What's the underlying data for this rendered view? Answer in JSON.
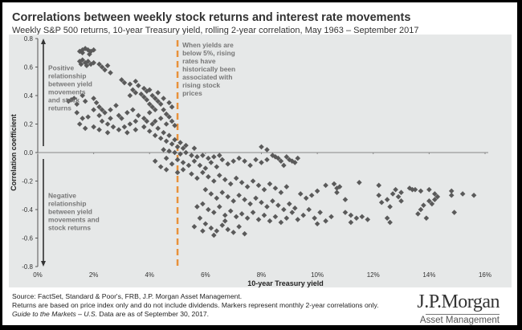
{
  "header": {
    "title": "Correlations between weekly stock returns and interest rate movements",
    "subtitle": "Weekly S&P 500 returns, 10-year Treasury yield, rolling 2-year correlation, May 1963 – September 2017"
  },
  "footer": {
    "line1": "Source: FactSet, Standard & Poor's, FRB, J.P. Morgan Asset Management.",
    "line2": "Returns are based on price index only and do not include dividends. Markers represent monthly 2-year correlations only.",
    "line3_italic": "Guide to the Markets – U.S.",
    "line3_rest": " Data are as of September 30, 2017."
  },
  "logo": {
    "brand": "J.P.Morgan",
    "division": "Asset Management"
  },
  "colors": {
    "marker": "#5a5a5a",
    "threshold_line": "#e8913a",
    "panel": "#e6e8e8",
    "annotation": "#777777"
  },
  "chart_data": {
    "type": "scatter",
    "title": "Correlations between weekly stock returns and interest rate movements",
    "xlabel": "10-year Treasury yield",
    "ylabel": "Correlation coefficient",
    "xlim": [
      0,
      16
    ],
    "ylim": [
      -0.8,
      0.8
    ],
    "x_ticks": [
      "0%",
      "2%",
      "4%",
      "6%",
      "8%",
      "10%",
      "12%",
      "14%",
      "16%"
    ],
    "y_ticks": [
      "0.8",
      "0.6",
      "0.4",
      "0.2",
      "0.0",
      "-0.2",
      "-0.4",
      "-0.6",
      "-0.8"
    ],
    "grid": false,
    "reference_lines": [
      {
        "axis": "x",
        "value": 5,
        "style": "dashed"
      }
    ],
    "annotations": {
      "threshold": [
        "When yields are",
        "below 5%, rising",
        "rates have",
        "historically been",
        "associated with",
        "rising stock",
        "prices"
      ],
      "positive": [
        "Positive",
        "relationship",
        "between yield",
        "movements",
        "and stock",
        "returns"
      ],
      "negative": [
        "Negative",
        "relationship",
        "between yield",
        "movements and",
        "stock returns"
      ]
    },
    "points": [
      [
        1.5,
        0.71
      ],
      [
        1.6,
        0.72
      ],
      [
        1.7,
        0.73
      ],
      [
        1.8,
        0.72
      ],
      [
        1.9,
        0.71
      ],
      [
        2.0,
        0.72
      ],
      [
        1.6,
        0.7
      ],
      [
        1.85,
        0.69
      ],
      [
        1.5,
        0.64
      ],
      [
        1.55,
        0.62
      ],
      [
        1.6,
        0.65
      ],
      [
        1.7,
        0.63
      ],
      [
        1.75,
        0.61
      ],
      [
        1.8,
        0.64
      ],
      [
        1.9,
        0.62
      ],
      [
        2.0,
        0.63
      ],
      [
        2.2,
        0.62
      ],
      [
        2.3,
        0.6
      ],
      [
        2.4,
        0.58
      ],
      [
        2.5,
        0.61
      ],
      [
        2.6,
        0.56
      ],
      [
        3.0,
        0.51
      ],
      [
        3.1,
        0.49
      ],
      [
        3.3,
        0.48
      ],
      [
        3.5,
        0.5
      ],
      [
        3.6,
        0.47
      ],
      [
        3.8,
        0.45
      ],
      [
        3.9,
        0.43
      ],
      [
        4.0,
        0.44
      ],
      [
        4.1,
        0.4
      ],
      [
        4.2,
        0.38
      ],
      [
        4.3,
        0.36
      ],
      [
        4.4,
        0.34
      ],
      [
        4.5,
        0.3
      ],
      [
        4.6,
        0.27
      ],
      [
        4.7,
        0.25
      ],
      [
        4.8,
        0.22
      ],
      [
        4.9,
        0.19
      ],
      [
        3.7,
        0.41
      ],
      [
        3.8,
        0.39
      ],
      [
        3.9,
        0.37
      ],
      [
        4.0,
        0.34
      ],
      [
        4.1,
        0.32
      ],
      [
        4.2,
        0.3
      ],
      [
        3.4,
        0.44
      ],
      [
        3.5,
        0.42
      ],
      [
        3.3,
        0.4
      ],
      [
        4.3,
        0.42
      ],
      [
        4.5,
        0.38
      ],
      [
        4.7,
        0.35
      ],
      [
        4.8,
        0.32
      ],
      [
        4.6,
        0.2
      ],
      [
        4.4,
        0.24
      ],
      [
        4.2,
        0.22
      ],
      [
        4.0,
        0.28
      ],
      [
        1.1,
        0.36
      ],
      [
        1.2,
        0.37
      ],
      [
        1.3,
        0.38
      ],
      [
        1.4,
        0.34
      ],
      [
        1.6,
        0.4
      ],
      [
        1.7,
        0.36
      ],
      [
        2.0,
        0.38
      ],
      [
        2.1,
        0.35
      ],
      [
        2.2,
        0.32
      ],
      [
        2.3,
        0.3
      ],
      [
        2.0,
        0.3
      ],
      [
        2.2,
        0.26
      ],
      [
        2.4,
        0.28
      ],
      [
        2.6,
        0.3
      ],
      [
        2.8,
        0.33
      ],
      [
        2.9,
        0.26
      ],
      [
        3.0,
        0.24
      ],
      [
        3.2,
        0.28
      ],
      [
        3.4,
        0.3
      ],
      [
        3.6,
        0.26
      ],
      [
        3.5,
        0.22
      ],
      [
        3.3,
        0.2
      ],
      [
        3.1,
        0.18
      ],
      [
        1.4,
        0.28
      ],
      [
        1.6,
        0.24
      ],
      [
        1.8,
        0.25
      ],
      [
        1.5,
        0.2
      ],
      [
        1.7,
        0.17
      ],
      [
        2.0,
        0.18
      ],
      [
        2.2,
        0.16
      ],
      [
        2.5,
        0.14
      ],
      [
        2.7,
        0.18
      ],
      [
        2.9,
        0.16
      ],
      [
        3.2,
        0.14
      ],
      [
        3.5,
        0.16
      ],
      [
        3.8,
        0.18
      ],
      [
        4.0,
        0.15
      ],
      [
        4.2,
        0.12
      ],
      [
        4.4,
        0.1
      ],
      [
        4.6,
        0.08
      ],
      [
        4.8,
        0.06
      ],
      [
        5.0,
        0.04
      ],
      [
        5.2,
        0.03
      ],
      [
        2.3,
        0.22
      ],
      [
        2.5,
        0.2
      ],
      [
        2.6,
        0.24
      ],
      [
        3.8,
        0.24
      ],
      [
        3.9,
        0.22
      ],
      [
        4.1,
        0.2
      ],
      [
        4.3,
        0.17
      ],
      [
        4.5,
        0.14
      ],
      [
        4.7,
        0.12
      ],
      [
        4.9,
        0.09
      ],
      [
        5.1,
        0.07
      ],
      [
        5.3,
        0.05
      ],
      [
        4.5,
        0.02
      ],
      [
        4.7,
        0.01
      ],
      [
        4.9,
        0.0
      ],
      [
        5.1,
        -0.01
      ],
      [
        5.3,
        0.0
      ],
      [
        5.5,
        -0.02
      ],
      [
        5.7,
        -0.03
      ],
      [
        5.9,
        -0.02
      ],
      [
        6.1,
        -0.04
      ],
      [
        6.3,
        -0.03
      ],
      [
        6.5,
        -0.02
      ],
      [
        5.0,
        -0.05
      ],
      [
        5.2,
        -0.07
      ],
      [
        5.4,
        -0.09
      ],
      [
        4.8,
        -0.08
      ],
      [
        4.6,
        -0.04
      ],
      [
        5.6,
        0.03
      ],
      [
        4.2,
        -0.06
      ],
      [
        4.4,
        -0.1
      ],
      [
        4.6,
        -0.12
      ],
      [
        5.0,
        -0.14
      ],
      [
        5.2,
        -0.12
      ],
      [
        5.6,
        -0.06
      ],
      [
        5.8,
        -0.09
      ],
      [
        6.0,
        -0.11
      ],
      [
        6.2,
        -0.07
      ],
      [
        6.4,
        -0.1
      ],
      [
        6.6,
        -0.05
      ],
      [
        6.8,
        -0.08
      ],
      [
        7.0,
        -0.06
      ],
      [
        7.2,
        -0.04
      ],
      [
        7.4,
        -0.06
      ],
      [
        7.6,
        -0.09
      ],
      [
        7.8,
        -0.05
      ],
      [
        8.0,
        -0.07
      ],
      [
        8.2,
        -0.05
      ],
      [
        8.5,
        -0.03
      ],
      [
        8.7,
        -0.06
      ],
      [
        9.0,
        -0.05
      ],
      [
        9.2,
        -0.07
      ],
      [
        9.3,
        -0.04
      ],
      [
        8.8,
        -0.09
      ],
      [
        8.0,
        0.04
      ],
      [
        8.2,
        0.02
      ],
      [
        8.4,
        -0.02
      ],
      [
        8.6,
        -0.04
      ],
      [
        8.9,
        -0.03
      ],
      [
        9.1,
        -0.06
      ],
      [
        5.5,
        -0.15
      ],
      [
        5.7,
        -0.18
      ],
      [
        5.9,
        -0.14
      ],
      [
        6.1,
        -0.17
      ],
      [
        6.3,
        -0.2
      ],
      [
        6.5,
        -0.16
      ],
      [
        6.7,
        -0.19
      ],
      [
        6.9,
        -0.22
      ],
      [
        7.1,
        -0.18
      ],
      [
        7.3,
        -0.21
      ],
      [
        7.5,
        -0.24
      ],
      [
        7.7,
        -0.2
      ],
      [
        7.9,
        -0.23
      ],
      [
        8.1,
        -0.26
      ],
      [
        8.3,
        -0.22
      ],
      [
        8.5,
        -0.25
      ],
      [
        8.7,
        -0.28
      ],
      [
        8.9,
        -0.24
      ],
      [
        6.0,
        -0.26
      ],
      [
        6.2,
        -0.29
      ],
      [
        6.4,
        -0.32
      ],
      [
        6.6,
        -0.28
      ],
      [
        6.8,
        -0.31
      ],
      [
        7.0,
        -0.34
      ],
      [
        7.2,
        -0.3
      ],
      [
        7.4,
        -0.33
      ],
      [
        7.6,
        -0.36
      ],
      [
        7.8,
        -0.32
      ],
      [
        8.0,
        -0.35
      ],
      [
        8.2,
        -0.38
      ],
      [
        8.4,
        -0.34
      ],
      [
        8.6,
        -0.37
      ],
      [
        8.8,
        -0.4
      ],
      [
        9.0,
        -0.36
      ],
      [
        9.2,
        -0.39
      ],
      [
        5.7,
        -0.38
      ],
      [
        5.9,
        -0.36
      ],
      [
        6.1,
        -0.4
      ],
      [
        6.3,
        -0.42
      ],
      [
        6.5,
        -0.38
      ],
      [
        6.7,
        -0.44
      ],
      [
        6.9,
        -0.41
      ],
      [
        7.1,
        -0.45
      ],
      [
        7.3,
        -0.43
      ],
      [
        7.5,
        -0.46
      ],
      [
        7.7,
        -0.42
      ],
      [
        7.9,
        -0.47
      ],
      [
        8.1,
        -0.44
      ],
      [
        8.3,
        -0.48
      ],
      [
        8.5,
        -0.45
      ],
      [
        8.7,
        -0.49
      ],
      [
        8.9,
        -0.46
      ],
      [
        9.1,
        -0.42
      ],
      [
        9.3,
        -0.47
      ],
      [
        9.5,
        -0.44
      ],
      [
        6.0,
        -0.5
      ],
      [
        6.2,
        -0.53
      ],
      [
        6.4,
        -0.55
      ],
      [
        6.6,
        -0.51
      ],
      [
        6.8,
        -0.54
      ],
      [
        7.0,
        -0.56
      ],
      [
        7.2,
        -0.52
      ],
      [
        7.4,
        -0.57
      ],
      [
        6.3,
        -0.58
      ],
      [
        6.7,
        -0.48
      ],
      [
        5.8,
        -0.46
      ],
      [
        5.6,
        -0.52
      ],
      [
        5.9,
        -0.55
      ],
      [
        9.4,
        -0.29
      ],
      [
        9.6,
        -0.32
      ],
      [
        9.8,
        -0.3
      ],
      [
        10.0,
        -0.27
      ],
      [
        9.7,
        -0.4
      ],
      [
        9.9,
        -0.46
      ],
      [
        10.1,
        -0.42
      ],
      [
        10.3,
        -0.48
      ],
      [
        10.5,
        -0.45
      ],
      [
        10.0,
        -0.5
      ],
      [
        10.3,
        -0.23
      ],
      [
        10.6,
        -0.22
      ],
      [
        10.7,
        -0.25
      ],
      [
        10.8,
        -0.24
      ],
      [
        10.7,
        -0.28
      ],
      [
        11.0,
        -0.33
      ],
      [
        11.5,
        -0.21
      ],
      [
        11.0,
        -0.42
      ],
      [
        11.2,
        -0.44
      ],
      [
        11.4,
        -0.46
      ],
      [
        11.6,
        -0.45
      ],
      [
        11.8,
        -0.47
      ],
      [
        11.2,
        -0.49
      ],
      [
        12.2,
        -0.23
      ],
      [
        12.2,
        -0.3
      ],
      [
        12.5,
        -0.33
      ],
      [
        12.7,
        -0.29
      ],
      [
        12.8,
        -0.26
      ],
      [
        12.9,
        -0.31
      ],
      [
        12.3,
        -0.35
      ],
      [
        12.6,
        -0.38
      ],
      [
        13.0,
        -0.34
      ],
      [
        13.0,
        -0.28
      ],
      [
        12.5,
        -0.46
      ],
      [
        12.6,
        -0.49
      ],
      [
        13.3,
        -0.25
      ],
      [
        13.4,
        -0.26
      ],
      [
        13.5,
        -0.26
      ],
      [
        13.7,
        -0.27
      ],
      [
        14.0,
        -0.26
      ],
      [
        14.2,
        -0.29
      ],
      [
        14.3,
        -0.31
      ],
      [
        14.0,
        -0.34
      ],
      [
        14.1,
        -0.36
      ],
      [
        14.2,
        -0.33
      ],
      [
        13.8,
        -0.37
      ],
      [
        13.7,
        -0.4
      ],
      [
        13.6,
        -0.43
      ],
      [
        13.9,
        -0.46
      ],
      [
        14.8,
        -0.27
      ],
      [
        14.8,
        -0.3
      ],
      [
        15.2,
        -0.29
      ],
      [
        15.6,
        -0.3
      ],
      [
        14.9,
        -0.42
      ]
    ]
  }
}
